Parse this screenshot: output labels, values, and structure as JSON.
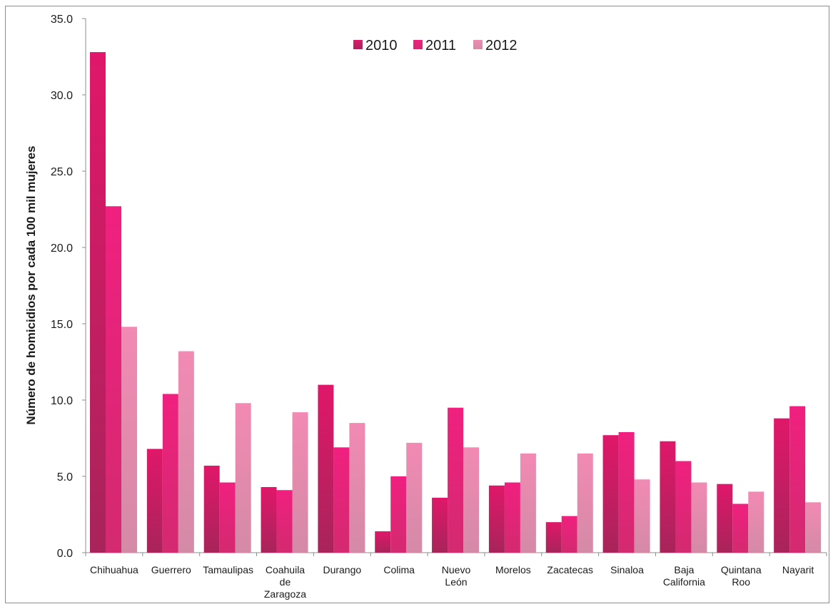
{
  "chart_data": {
    "type": "bar",
    "title": "",
    "xlabel": "",
    "ylabel": "Número de homicidios por cada 100 mil mujeres",
    "ylim": [
      0,
      35
    ],
    "yticks": [
      "0.0",
      "5.0",
      "10.0",
      "15.0",
      "20.0",
      "25.0",
      "30.0",
      "35.0"
    ],
    "grid": false,
    "legend_position": "top-center",
    "categories": [
      [
        "Chihuahua"
      ],
      [
        "Guerrero"
      ],
      [
        "Tamaulipas"
      ],
      [
        "Coahuila",
        "de",
        "Zaragoza"
      ],
      [
        "Durango"
      ],
      [
        "Colima"
      ],
      [
        "Nuevo",
        "León"
      ],
      [
        "Morelos"
      ],
      [
        "Zacatecas"
      ],
      [
        "Sinaloa"
      ],
      [
        "Baja",
        "California"
      ],
      [
        "Quintana",
        "Roo"
      ],
      [
        "Nayarit"
      ]
    ],
    "series": [
      {
        "name": "2010",
        "color": "#c8205f",
        "values": [
          32.8,
          6.8,
          5.7,
          4.3,
          11.0,
          1.4,
          3.6,
          4.4,
          2.0,
          7.7,
          7.3,
          4.5,
          8.8
        ]
      },
      {
        "name": "2011",
        "color": "#ec2f86",
        "values": [
          22.7,
          10.4,
          4.6,
          4.1,
          6.9,
          5.0,
          9.5,
          4.6,
          2.4,
          7.9,
          6.0,
          3.2,
          9.6
        ]
      },
      {
        "name": "2012",
        "color": "#f28fb8",
        "values": [
          14.8,
          13.2,
          9.8,
          9.2,
          8.5,
          7.2,
          6.9,
          6.5,
          6.5,
          4.8,
          4.6,
          4.0,
          3.3
        ]
      }
    ]
  }
}
